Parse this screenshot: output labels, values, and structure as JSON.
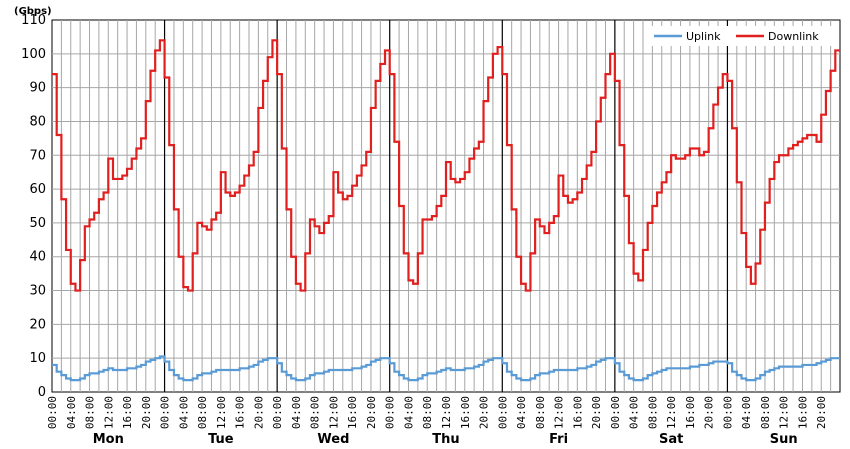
{
  "chart_data": {
    "type": "line",
    "unit_label": "(Gbps)",
    "ylim": [
      0,
      110
    ],
    "y_ticks": [
      "0",
      "10",
      "20",
      "30",
      "40",
      "50",
      "60",
      "70",
      "80",
      "90",
      "100",
      "110"
    ],
    "hour_ticks": [
      "00:00",
      "04:00",
      "08:00",
      "12:00",
      "16:00",
      "20:00"
    ],
    "days": [
      "Mon",
      "Tue",
      "Wed",
      "Thu",
      "Fri",
      "Sat",
      "Sun"
    ],
    "grid": true,
    "step": true,
    "legend": "top-right",
    "hours_per_point": 1,
    "series": [
      {
        "name": "Uplink",
        "color": "#5b9bd5",
        "values": [
          8,
          6,
          5,
          4,
          3.5,
          3.5,
          4,
          5,
          5.5,
          5.5,
          6,
          6.5,
          7,
          6.5,
          6.5,
          6.5,
          7,
          7,
          7.5,
          8,
          9,
          9.5,
          10,
          10.5,
          9,
          6.5,
          5,
          4,
          3.5,
          3.5,
          4,
          5,
          5.5,
          5.5,
          6,
          6.5,
          6.5,
          6.5,
          6.5,
          6.5,
          7,
          7,
          7.5,
          8,
          9,
          9.5,
          10,
          10,
          8.5,
          6,
          5,
          4,
          3.5,
          3.5,
          4,
          5,
          5.5,
          5.5,
          6,
          6.5,
          6.5,
          6.5,
          6.5,
          6.5,
          7,
          7,
          7.5,
          8,
          9,
          9.5,
          10,
          10,
          8.5,
          6,
          5,
          4,
          3.5,
          3.5,
          4,
          5,
          5.5,
          5.5,
          6,
          6.5,
          7,
          6.5,
          6.5,
          6.5,
          7,
          7,
          7.5,
          8,
          9,
          9.5,
          10,
          10,
          8.5,
          6,
          5,
          4,
          3.5,
          3.5,
          4,
          5,
          5.5,
          5.5,
          6,
          6.5,
          6.5,
          6.5,
          6.5,
          6.5,
          7,
          7,
          7.5,
          8,
          9,
          9.5,
          10,
          10,
          8.5,
          6,
          5,
          4,
          3.5,
          3.5,
          4,
          5,
          5.5,
          6,
          6.5,
          7,
          7,
          7,
          7,
          7,
          7.5,
          7.5,
          8,
          8,
          8.5,
          9,
          9,
          9,
          8.5,
          6,
          5,
          4,
          3.5,
          3.5,
          4,
          5,
          6,
          6.5,
          7,
          7.5,
          7.5,
          7.5,
          7.5,
          7.5,
          8,
          8,
          8,
          8.5,
          9,
          9.5,
          10,
          10
        ]
      },
      {
        "name": "Downlink",
        "color": "#e01f1f",
        "values": [
          94,
          76,
          57,
          42,
          32,
          30,
          39,
          49,
          51,
          53,
          57,
          59,
          69,
          63,
          63,
          64,
          66,
          69,
          72,
          75,
          86,
          95,
          101,
          104,
          93,
          73,
          54,
          40,
          31,
          30,
          41,
          50,
          49,
          48,
          51,
          53,
          65,
          59,
          58,
          59,
          61,
          64,
          67,
          71,
          84,
          92,
          99,
          104,
          94,
          72,
          54,
          40,
          32,
          30,
          41,
          51,
          49,
          47,
          50,
          52,
          65,
          59,
          57,
          58,
          61,
          64,
          67,
          71,
          84,
          92,
          97,
          101,
          94,
          74,
          55,
          41,
          33,
          32,
          41,
          51,
          51,
          52,
          55,
          58,
          68,
          63,
          62,
          63,
          65,
          69,
          72,
          74,
          86,
          93,
          100,
          102,
          94,
          73,
          54,
          40,
          32,
          30,
          41,
          51,
          49,
          47,
          50,
          52,
          64,
          58,
          56,
          57,
          59,
          63,
          67,
          71,
          80,
          87,
          94,
          100,
          92,
          73,
          58,
          44,
          35,
          33,
          42,
          50,
          55,
          59,
          62,
          65,
          70,
          69,
          69,
          70,
          72,
          72,
          70,
          71,
          78,
          85,
          90,
          94,
          92,
          78,
          62,
          47,
          37,
          32,
          38,
          48,
          56,
          63,
          68,
          70,
          70,
          72,
          73,
          74,
          75,
          76,
          76,
          74,
          82,
          89,
          95,
          101
        ]
      }
    ]
  }
}
